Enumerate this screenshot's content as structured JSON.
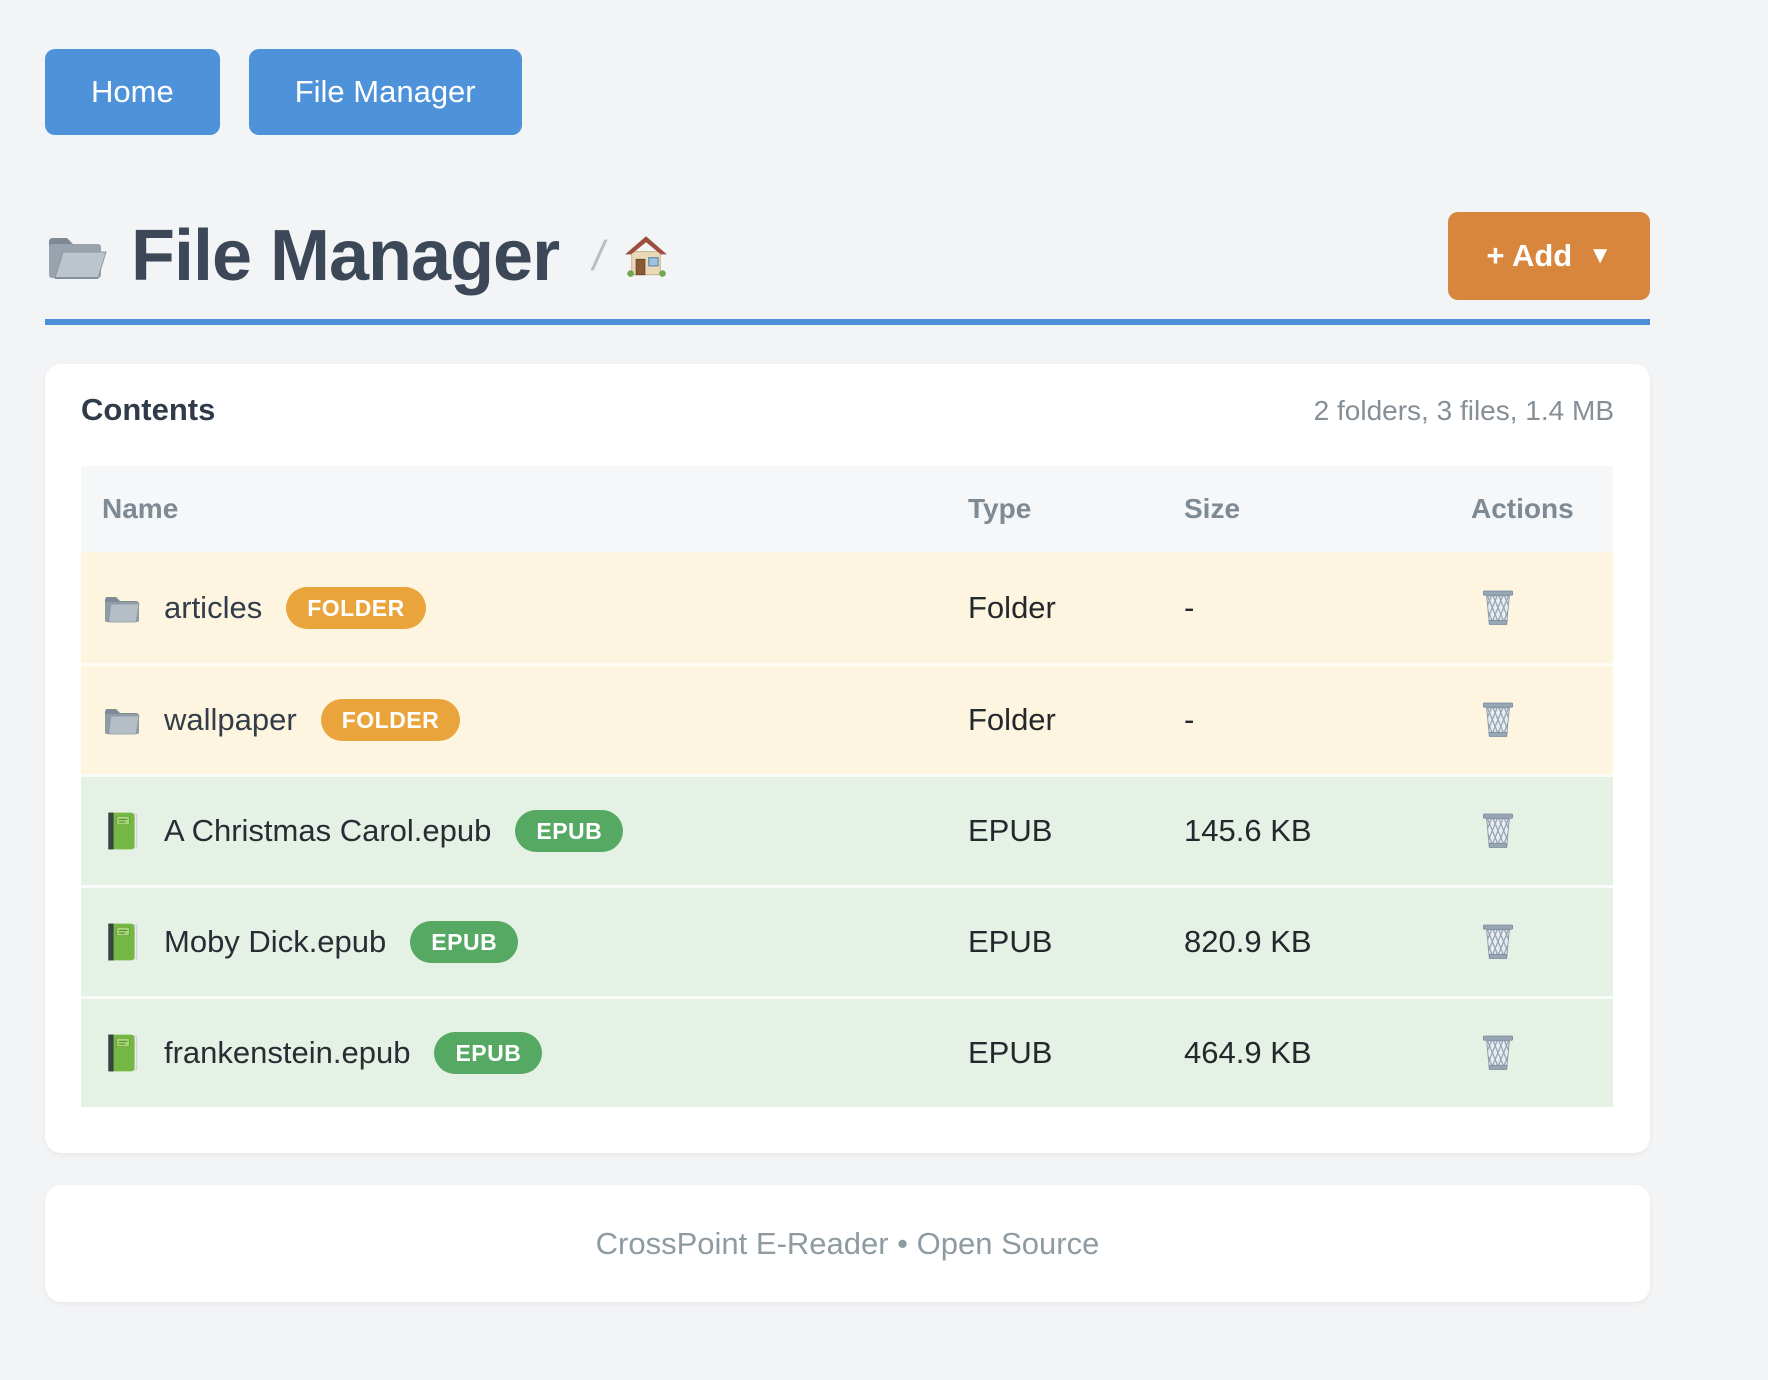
{
  "nav": {
    "buttons": [
      {
        "label": "Home"
      },
      {
        "label": "File Manager"
      }
    ]
  },
  "header": {
    "title": "File Manager",
    "title_icon": "folder-open-icon",
    "breadcrumb_separator": "/",
    "breadcrumb_home_icon": "home-icon",
    "add_button_label": "+ Add",
    "add_button_caret": "▼"
  },
  "contents": {
    "heading": "Contents",
    "summary": "2 folders, 3 files, 1.4 MB",
    "columns": [
      "Name",
      "Type",
      "Size",
      "Actions"
    ],
    "rows": [
      {
        "name": "articles",
        "badge": "FOLDER",
        "type": "Folder",
        "size": "-",
        "kind": "folder",
        "icon": "folder-icon",
        "action_icon": "trash-icon"
      },
      {
        "name": "wallpaper",
        "badge": "FOLDER",
        "type": "Folder",
        "size": "-",
        "kind": "folder",
        "icon": "folder-icon",
        "action_icon": "trash-icon"
      },
      {
        "name": "A Christmas Carol.epub",
        "badge": "EPUB",
        "type": "EPUB",
        "size": "145.6 KB",
        "kind": "epub",
        "icon": "book-icon",
        "action_icon": "trash-icon"
      },
      {
        "name": "Moby Dick.epub",
        "badge": "EPUB",
        "type": "EPUB",
        "size": "820.9 KB",
        "kind": "epub",
        "icon": "book-icon",
        "action_icon": "trash-icon"
      },
      {
        "name": "frankenstein.epub",
        "badge": "EPUB",
        "type": "EPUB",
        "size": "464.9 KB",
        "kind": "epub",
        "icon": "book-icon",
        "action_icon": "trash-icon"
      }
    ]
  },
  "footer": {
    "text": "CrossPoint E-Reader • Open Source"
  },
  "colors": {
    "page_background": "#f3f4f5",
    "nav_button_blue": "#4e93da",
    "header_rule_blue": "#4a90d8",
    "add_button_orange": "#d8863e",
    "badge_folder_orange": "#e9a43b",
    "badge_epub_green": "#56a962",
    "row_folder_cream": "#fdf5e0",
    "row_epub_green": "#e6f1e6",
    "table_header_bg": "#f5f7f8",
    "title_text": "#3c4857",
    "muted_text": "#868e96"
  }
}
